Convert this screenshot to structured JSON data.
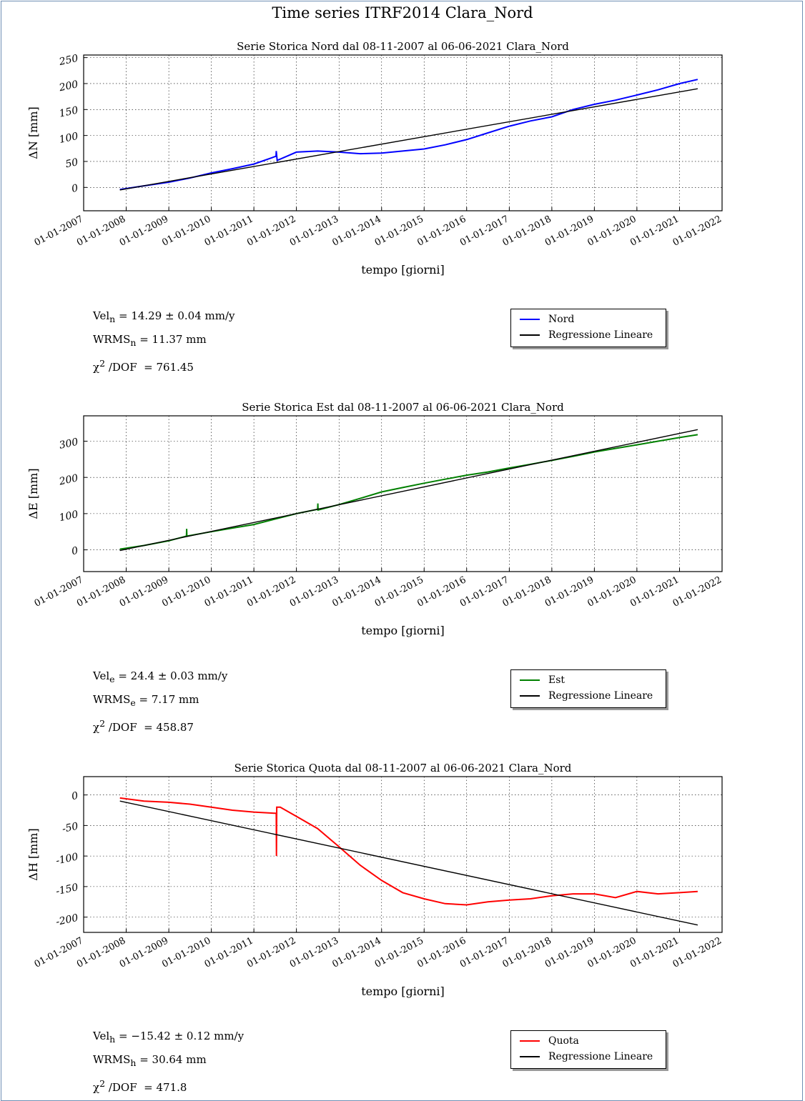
{
  "page_title": "Time series ITRF2014 Clara_Nord",
  "chart_data": [
    {
      "type": "line",
      "title": "Serie Storica Nord dal 08-11-2007 al 06-06-2021 Clara_Nord",
      "xlabel": "tempo [giorni]",
      "ylabel": "ΔN [mm]",
      "xlim": [
        "2007-01-01",
        "2022-01-01"
      ],
      "ylim": [
        -45,
        255
      ],
      "x_ticks": [
        "01-01-2007",
        "01-01-2008",
        "01-01-2009",
        "01-01-2010",
        "01-01-2011",
        "01-01-2012",
        "01-01-2013",
        "01-01-2014",
        "01-01-2015",
        "01-01-2016",
        "01-01-2017",
        "01-01-2018",
        "01-01-2019",
        "01-01-2020",
        "01-01-2021",
        "01-01-2022"
      ],
      "y_ticks": [
        "0",
        "50",
        "100",
        "150",
        "200",
        "250"
      ],
      "grid": true,
      "legend": "right",
      "series": [
        {
          "name": "Nord",
          "color": "#0000ff",
          "x": [
            "2007-11-08",
            "2008-06-01",
            "2009-01-01",
            "2009-07-01",
            "2010-01-01",
            "2010-07-01",
            "2011-01-01",
            "2011-07-10",
            "2011-07-12",
            "2011-07-20",
            "2012-01-01",
            "2012-07-01",
            "2013-01-01",
            "2013-07-01",
            "2014-01-01",
            "2014-07-01",
            "2015-01-01",
            "2015-07-01",
            "2016-01-01",
            "2016-07-01",
            "2017-01-01",
            "2017-07-01",
            "2018-01-01",
            "2018-07-01",
            "2019-01-01",
            "2019-07-01",
            "2020-01-01",
            "2020-07-01",
            "2021-01-01",
            "2021-06-06"
          ],
          "y": [
            -4,
            3,
            10,
            18,
            28,
            36,
            45,
            60,
            70,
            52,
            68,
            70,
            68,
            65,
            66,
            70,
            74,
            82,
            92,
            105,
            118,
            128,
            136,
            150,
            160,
            168,
            178,
            188,
            200,
            208
          ]
        },
        {
          "name": "Regressione Lineare",
          "color": "#000000",
          "x": [
            "2007-11-08",
            "2021-06-06"
          ],
          "y": [
            -5,
            190
          ]
        }
      ],
      "stats": {
        "vel": "14.29 ± 0.04  mm/y",
        "wrms": "11.37  mm",
        "chi2": "761.45"
      }
    },
    {
      "type": "line",
      "title": "Serie Storica Est dal 08-11-2007 al 06-06-2021 Clara_Nord",
      "xlabel": "tempo [giorni]",
      "ylabel": "ΔE [mm]",
      "xlim": [
        "2007-01-01",
        "2022-01-01"
      ],
      "ylim": [
        -60,
        370
      ],
      "x_ticks": [
        "01-01-2007",
        "01-01-2008",
        "01-01-2009",
        "01-01-2010",
        "01-01-2011",
        "01-01-2012",
        "01-01-2013",
        "01-01-2014",
        "01-01-2015",
        "01-01-2016",
        "01-01-2017",
        "01-01-2018",
        "01-01-2019",
        "01-01-2020",
        "01-01-2021",
        "01-01-2022"
      ],
      "y_ticks": [
        "0",
        "100",
        "200",
        "300"
      ],
      "grid": true,
      "legend": "right",
      "series": [
        {
          "name": "Est",
          "color": "#008000",
          "x": [
            "2007-11-08",
            "2008-06-01",
            "2009-01-01",
            "2009-06-01",
            "2009-06-03",
            "2009-06-05",
            "2010-01-01",
            "2010-07-01",
            "2011-01-01",
            "2011-07-01",
            "2012-01-01",
            "2012-07-01",
            "2012-07-03",
            "2012-07-05",
            "2013-01-01",
            "2013-07-01",
            "2014-01-01",
            "2014-07-01",
            "2015-01-01",
            "2015-07-01",
            "2016-01-01",
            "2016-07-01",
            "2017-01-01",
            "2017-07-01",
            "2018-01-01",
            "2018-07-01",
            "2019-01-01",
            "2019-07-01",
            "2020-01-01",
            "2020-07-01",
            "2021-01-01",
            "2021-06-06"
          ],
          "y": [
            2,
            12,
            25,
            38,
            58,
            38,
            50,
            60,
            70,
            85,
            100,
            112,
            128,
            110,
            125,
            142,
            160,
            172,
            184,
            195,
            206,
            215,
            226,
            236,
            247,
            258,
            270,
            280,
            290,
            300,
            310,
            318
          ]
        },
        {
          "name": "Regressione Lineare",
          "color": "#000000",
          "x": [
            "2007-11-08",
            "2021-06-06"
          ],
          "y": [
            -2,
            332
          ]
        }
      ],
      "stats": {
        "vel": "24.4 ± 0.03  mm/y",
        "wrms": "7.17  mm",
        "chi2": "458.87"
      }
    },
    {
      "type": "line",
      "title": "Serie Storica Quota dal 08-11-2007 al 06-06-2021 Clara_Nord",
      "xlabel": "tempo [giorni]",
      "ylabel": "ΔH [mm]",
      "xlim": [
        "2007-01-01",
        "2022-01-01"
      ],
      "ylim": [
        -225,
        30
      ],
      "x_ticks": [
        "01-01-2007",
        "01-01-2008",
        "01-01-2009",
        "01-01-2010",
        "01-01-2011",
        "01-01-2012",
        "01-01-2013",
        "01-01-2014",
        "01-01-2015",
        "01-01-2016",
        "01-01-2017",
        "01-01-2018",
        "01-01-2019",
        "01-01-2020",
        "01-01-2021",
        "01-01-2022"
      ],
      "y_ticks": [
        "0",
        "-50",
        "-100",
        "-150",
        "-200"
      ],
      "grid": true,
      "legend": "right",
      "series": [
        {
          "name": "Quota",
          "color": "#ff0000",
          "x": [
            "2007-11-08",
            "2008-06-01",
            "2009-01-01",
            "2009-07-01",
            "2010-01-01",
            "2010-07-01",
            "2011-01-01",
            "2011-07-01",
            "2011-07-12",
            "2011-07-14",
            "2011-07-16",
            "2011-08-15",
            "2012-01-01",
            "2012-07-01",
            "2013-01-01",
            "2013-07-01",
            "2014-01-01",
            "2014-07-01",
            "2015-01-01",
            "2015-07-01",
            "2016-01-01",
            "2016-07-01",
            "2017-01-01",
            "2017-07-01",
            "2018-01-01",
            "2018-07-01",
            "2019-01-01",
            "2019-07-01",
            "2020-01-01",
            "2020-07-01",
            "2021-01-01",
            "2021-06-06"
          ],
          "y": [
            -5,
            -10,
            -12,
            -15,
            -20,
            -25,
            -28,
            -30,
            -30,
            -100,
            -20,
            -20,
            -35,
            -55,
            -85,
            -115,
            -140,
            -160,
            -170,
            -178,
            -180,
            -175,
            -172,
            -170,
            -165,
            -162,
            -162,
            -168,
            -158,
            -162,
            -160,
            -158
          ]
        },
        {
          "name": "Regressione Lineare",
          "color": "#000000",
          "x": [
            "2007-11-08",
            "2021-06-06"
          ],
          "y": [
            -10,
            -213
          ]
        }
      ],
      "stats": {
        "vel": "−15.42 ± 0.12  mm/y",
        "wrms": "30.64  mm",
        "chi2": "471.8"
      }
    }
  ]
}
